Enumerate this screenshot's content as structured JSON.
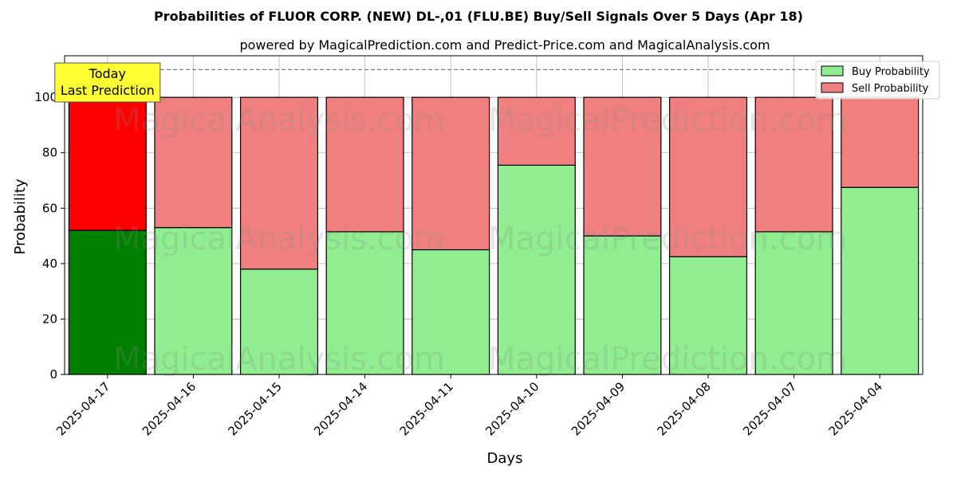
{
  "chart_data": {
    "type": "bar",
    "stacked": true,
    "title": "Probabilities of FLUOR CORP. (NEW)  DL-,01 (FLU.BE) Buy/Sell Signals Over 5 Days (Apr 18)",
    "subtitle": "powered by MagicalPrediction.com and Predict-Price.com and MagicalAnalysis.com",
    "xlabel": "Days",
    "ylabel": "Probability",
    "ylim": [
      0,
      115
    ],
    "yticks": [
      0,
      20,
      40,
      60,
      80,
      100
    ],
    "grid": true,
    "legend_position": "top-right",
    "reference_line": 110,
    "categories": [
      "2025-04-17",
      "2025-04-16",
      "2025-04-15",
      "2025-04-14",
      "2025-04-11",
      "2025-04-10",
      "2025-04-09",
      "2025-04-08",
      "2025-04-07",
      "2025-04-04"
    ],
    "series": [
      {
        "name": "Buy Probability",
        "values": [
          52,
          53,
          38,
          51.5,
          45,
          75.5,
          50,
          42.5,
          51.5,
          67.5
        ],
        "color": "#90ee90",
        "highlight_color": "#008000"
      },
      {
        "name": "Sell Probability",
        "values": [
          48,
          47,
          62,
          48.5,
          55,
          24.5,
          50,
          57.5,
          48.5,
          32.5
        ],
        "color": "#f08080",
        "highlight_color": "#ff0000"
      }
    ],
    "highlight_index": 0,
    "annotation": {
      "lines": [
        "Today",
        "Last Prediction"
      ],
      "background": "#ffff33"
    },
    "watermarks": [
      "MagicalAnalysis.com",
      "MagicalPrediction.com",
      "MagicalAnalysis.com",
      "MagicalPrediction.com",
      "MagicalAnalysis.com",
      "MagicalPrediction.com"
    ]
  }
}
